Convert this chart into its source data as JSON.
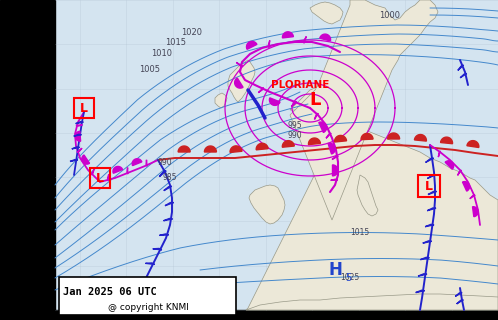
{
  "figsize": [
    4.98,
    3.2
  ],
  "dpi": 100,
  "bg_color": "#d4e4f0",
  "land_color": "#ece8d8",
  "ocean_color": "#d4e4f0",
  "isobar_color": "#4488cc",
  "isobar_lw": 0.7,
  "occluded_color": "#cc00cc",
  "cold_front_color": "#2222cc",
  "warm_front_color": "#cc2222",
  "label_color": "#555566",
  "storm_name": "PLORIANE",
  "bottom_left": "Jan 2025 06 UTC",
  "bottom_right": "@ copyright KNMI",
  "grid_color": "#aabbcc",
  "grid_alpha": 0.4
}
